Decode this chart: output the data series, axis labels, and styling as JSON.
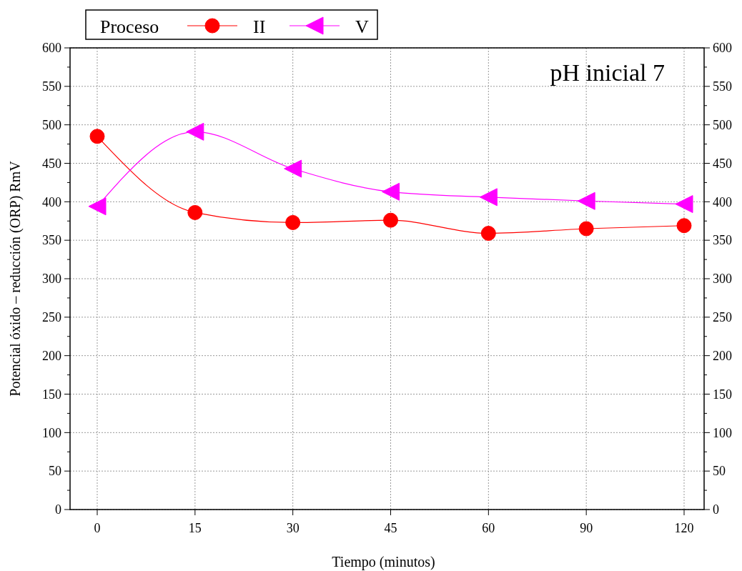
{
  "chart_data": {
    "type": "line",
    "xlabel": "Tiempo (minutos)",
    "ylabel": "Potencial óxido – reducción (ORP) RmV",
    "legend_title": "Proceso",
    "categories": [
      "0",
      "15",
      "30",
      "45",
      "60",
      "90",
      "120"
    ],
    "series": [
      {
        "name": "II",
        "color": "#ff0000",
        "marker": "circle",
        "values": [
          485,
          386,
          373,
          376,
          359,
          365,
          369
        ]
      },
      {
        "name": "V",
        "color": "#ff00ff",
        "marker": "triangle",
        "values": [
          394,
          491,
          443,
          413,
          406,
          401,
          397
        ]
      }
    ],
    "ylim": [
      0,
      600
    ],
    "yticks": [
      0,
      50,
      100,
      150,
      200,
      250,
      300,
      350,
      400,
      450,
      500,
      550,
      600
    ],
    "y2lim": [
      0,
      600
    ],
    "y2ticks": [
      0,
      50,
      100,
      150,
      200,
      250,
      300,
      350,
      400,
      450,
      500,
      550,
      600
    ],
    "grid": true,
    "legend": "top left",
    "line_style": "solid",
    "annotations": [
      "pH inicial 7"
    ]
  }
}
